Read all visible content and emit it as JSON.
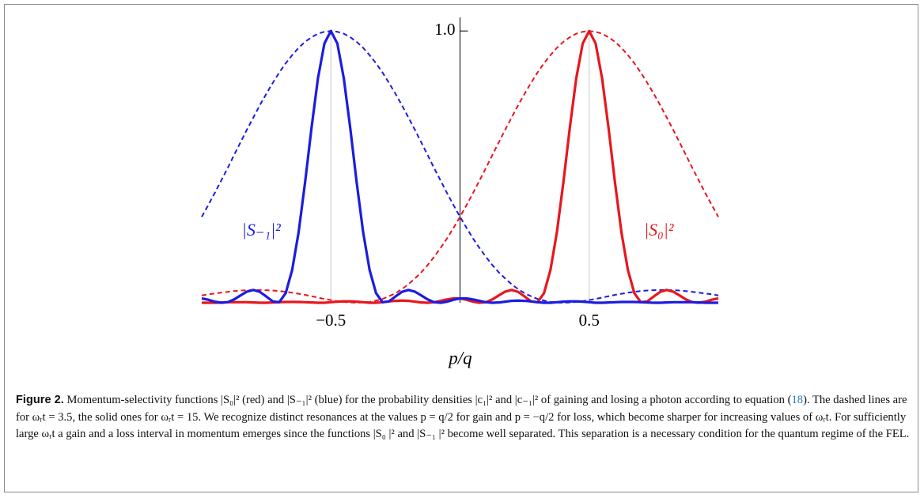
{
  "chart_data": {
    "type": "line",
    "xlabel": "p/q",
    "xlim": [
      -1,
      1
    ],
    "ylim": [
      0,
      1.05
    ],
    "xticks": [
      {
        "value": -0.5,
        "label": "−0.5"
      },
      {
        "value": 0.5,
        "label": "0.5"
      }
    ],
    "yticks": [
      {
        "value": 1,
        "label": "1.0"
      }
    ],
    "grid": true,
    "x": [
      -1,
      -0.975,
      -0.95,
      -0.925,
      -0.9,
      -0.875,
      -0.85,
      -0.825,
      -0.8,
      -0.775,
      -0.75,
      -0.725,
      -0.7,
      -0.675,
      -0.65,
      -0.625,
      -0.6,
      -0.575,
      -0.55,
      -0.525,
      -0.5,
      -0.475,
      -0.45,
      -0.425,
      -0.4,
      -0.375,
      -0.35,
      -0.325,
      -0.3,
      -0.275,
      -0.25,
      -0.225,
      -0.2,
      -0.175,
      -0.15,
      -0.125,
      -0.1,
      -0.075,
      -0.05,
      -0.025,
      0,
      0.025,
      0.05,
      0.075,
      0.1,
      0.125,
      0.15,
      0.175,
      0.2,
      0.225,
      0.25,
      0.275,
      0.3,
      0.325,
      0.35,
      0.375,
      0.4,
      0.425,
      0.45,
      0.475,
      0.5,
      0.525,
      0.55,
      0.575,
      0.6,
      0.625,
      0.65,
      0.675,
      0.7,
      0.725,
      0.75,
      0.775,
      0.8,
      0.825,
      0.85,
      0.875,
      0.9,
      0.925,
      0.95,
      0.975,
      1
    ],
    "series": [
      {
        "color": "#e8161c",
        "dash": true,
        "values": [
          0.027,
          0.031,
          0.034,
          0.037,
          0.04,
          0.043,
          0.045,
          0.046,
          0.047,
          0.047,
          0.046,
          0.045,
          0.043,
          0.04,
          0.037,
          0.033,
          0.029,
          0.024,
          0.019,
          0.014,
          0.01,
          0.006,
          0.003,
          0.001,
          0,
          0.001,
          0.003,
          0.008,
          0.014,
          0.024,
          0.035,
          0.05,
          0.068,
          0.089,
          0.112,
          0.139,
          0.169,
          0.202,
          0.237,
          0.276,
          0.316,
          0.359,
          0.403,
          0.449,
          0.495,
          0.543,
          0.59,
          0.637,
          0.682,
          0.727,
          0.769,
          0.809,
          0.847,
          0.881,
          0.911,
          0.938,
          0.96,
          0.977,
          0.99,
          0.997,
          1,
          0.997,
          0.99,
          0.977,
          0.96,
          0.938,
          0.911,
          0.881,
          0.847,
          0.809,
          0.769,
          0.727,
          0.682,
          0.637,
          0.59,
          0.543,
          0.495,
          0.449,
          0.403,
          0.359,
          0.316
        ]
      },
      {
        "color": "#1c1ce0",
        "dash": true,
        "values": [
          0.316,
          0.359,
          0.403,
          0.449,
          0.495,
          0.543,
          0.59,
          0.637,
          0.682,
          0.727,
          0.769,
          0.809,
          0.847,
          0.881,
          0.911,
          0.938,
          0.96,
          0.977,
          0.99,
          0.997,
          1,
          0.997,
          0.99,
          0.977,
          0.96,
          0.938,
          0.911,
          0.881,
          0.847,
          0.809,
          0.769,
          0.727,
          0.682,
          0.637,
          0.59,
          0.543,
          0.495,
          0.449,
          0.403,
          0.359,
          0.316,
          0.276,
          0.237,
          0.202,
          0.169,
          0.139,
          0.112,
          0.089,
          0.068,
          0.05,
          0.035,
          0.024,
          0.014,
          0.008,
          0.003,
          0.001,
          0,
          0.001,
          0.003,
          0.006,
          0.01,
          0.014,
          0.019,
          0.024,
          0.029,
          0.033,
          0.037,
          0.04,
          0.043,
          0.045,
          0.046,
          0.047,
          0.047,
          0.046,
          0.045,
          0.043,
          0.04,
          0.037,
          0.034,
          0.031,
          0.027
        ]
      },
      {
        "name": "|S₀|²",
        "color": "#e8161c",
        "dash": false,
        "values": [
          0,
          0,
          0,
          0.001,
          0.002,
          0.002,
          0.002,
          0.002,
          0.001,
          0,
          0,
          0.001,
          0.002,
          0.003,
          0.003,
          0.003,
          0.002,
          0.001,
          0,
          0,
          0.002,
          0.004,
          0.005,
          0.005,
          0.004,
          0.002,
          0,
          0,
          0.002,
          0.005,
          0.007,
          0.008,
          0.007,
          0.004,
          0.001,
          0,
          0.002,
          0.007,
          0.012,
          0.016,
          0.016,
          0.011,
          0.004,
          0,
          0.002,
          0.012,
          0.027,
          0.041,
          0.047,
          0.04,
          0.023,
          0.005,
          0.002,
          0.035,
          0.12,
          0.259,
          0.442,
          0.643,
          0.826,
          0.954,
          1,
          0.954,
          0.826,
          0.643,
          0.442,
          0.259,
          0.12,
          0.035,
          0.002,
          0.005,
          0.023,
          0.04,
          0.047,
          0.041,
          0.027,
          0.012,
          0.002,
          0,
          0.004,
          0.011,
          0.016
        ]
      },
      {
        "name": "|S₋₁|²",
        "color": "#1c1ce0",
        "dash": false,
        "values": [
          0.016,
          0.011,
          0.004,
          0,
          0.002,
          0.012,
          0.027,
          0.041,
          0.047,
          0.04,
          0.023,
          0.005,
          0.002,
          0.035,
          0.12,
          0.259,
          0.442,
          0.643,
          0.826,
          0.954,
          1,
          0.954,
          0.826,
          0.643,
          0.442,
          0.259,
          0.12,
          0.035,
          0.002,
          0.005,
          0.023,
          0.04,
          0.047,
          0.041,
          0.027,
          0.012,
          0.002,
          0,
          0.004,
          0.011,
          0.016,
          0.016,
          0.012,
          0.007,
          0.002,
          0,
          0.001,
          0.004,
          0.007,
          0.008,
          0.007,
          0.005,
          0.002,
          0,
          0,
          0.002,
          0.004,
          0.005,
          0.005,
          0.004,
          0.002,
          0,
          0,
          0.001,
          0.002,
          0.003,
          0.003,
          0.003,
          0.002,
          0.001,
          0,
          0,
          0.001,
          0.002,
          0.002,
          0.002,
          0.002,
          0.001,
          0,
          0,
          0
        ]
      }
    ]
  },
  "caption": {
    "label": "Figure 2.",
    "before": " Momentum-selectivity functions |S₀|² (red) and |S₋₁|² (blue) for the probability densities |c₁|² and |c₋₁|² of gaining and losing a photon according to equation (",
    "ref": "18",
    "after": "). The dashed lines are for ωᵣt = 3.5, the solid ones for ωᵣt = 15. We recognize distinct resonances at the values p = q/2 for gain and p = −q/2 for loss, which become sharper for increasing values of ωᵣt. For sufficiently large ωᵣt a gain and a loss interval in momentum emerges since the functions |S₀ |² and |S₋₁ |² become well separated. This separation is a necessary condition for the quantum regime of the FEL."
  }
}
